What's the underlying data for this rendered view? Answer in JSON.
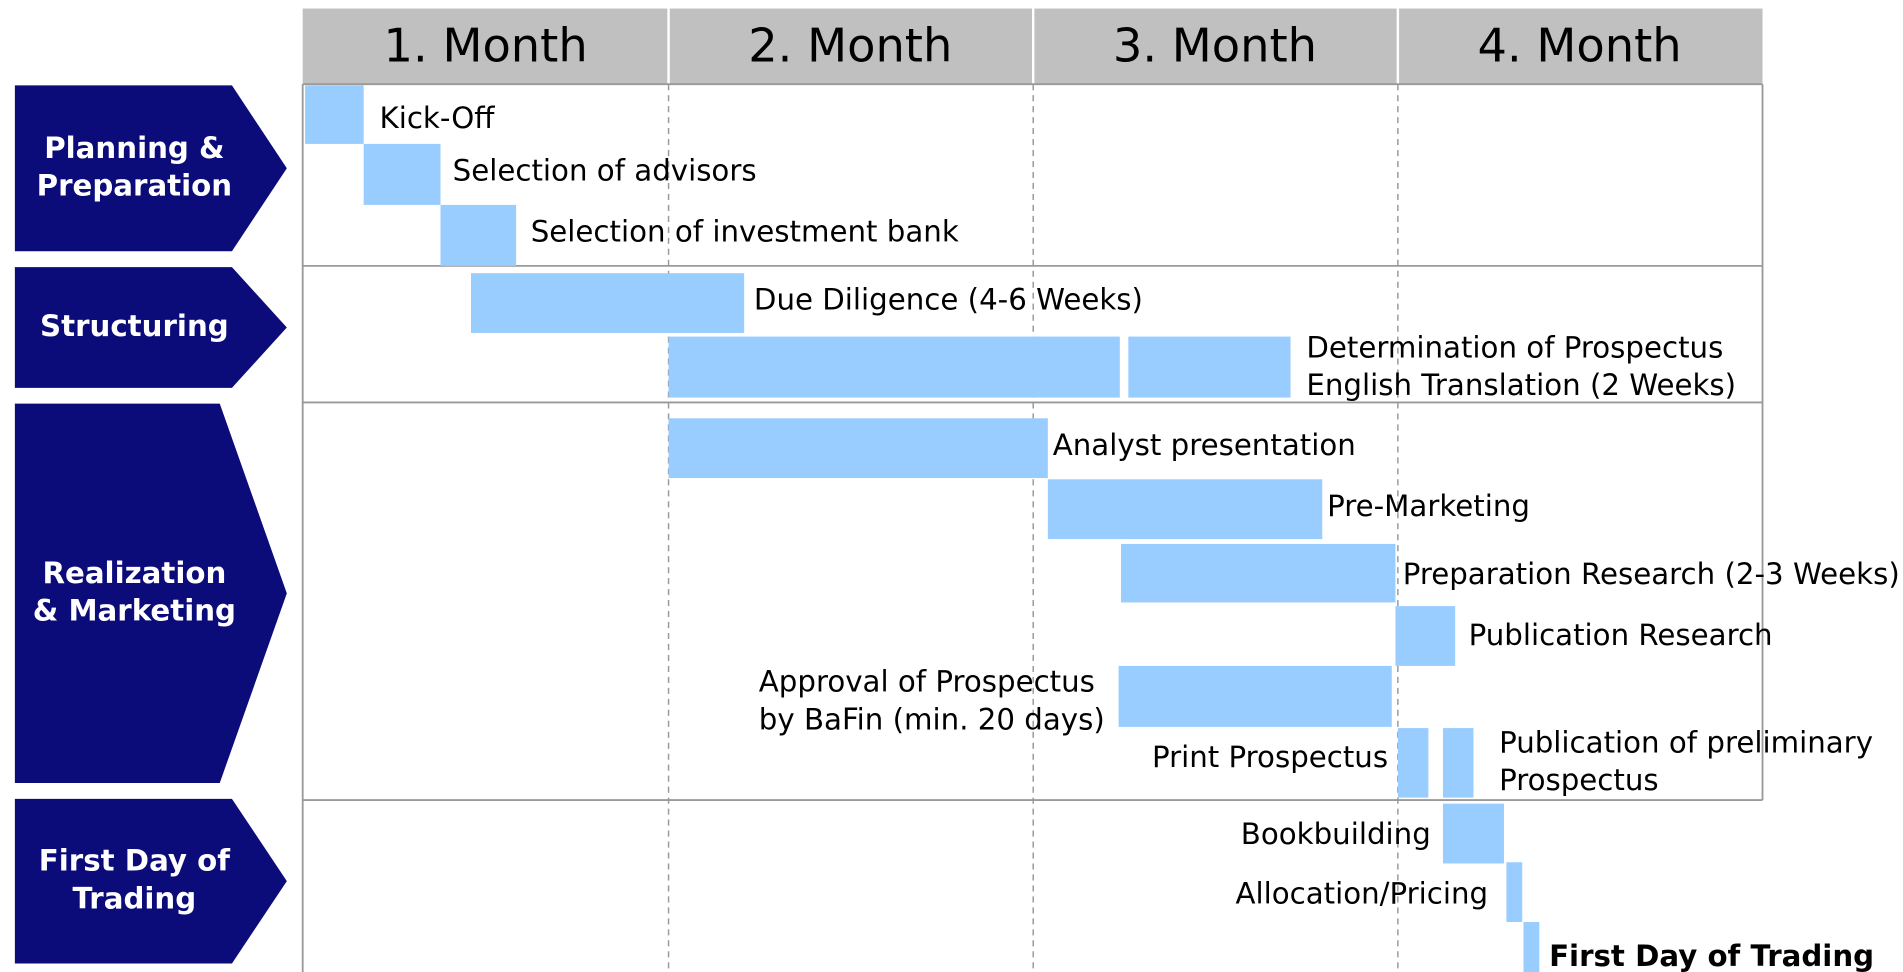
{
  "header": {
    "months": [
      "1. Month",
      "2. Month",
      "3. Month",
      "4. Month"
    ]
  },
  "phases": [
    {
      "label": [
        "Planning &",
        "Preparation"
      ]
    },
    {
      "label": [
        "Structuring"
      ]
    },
    {
      "label": [
        "Realization",
        "& Marketing"
      ]
    },
    {
      "label": [
        "First Day of",
        "Trading"
      ]
    }
  ],
  "tasks": [
    {
      "label": [
        "Kick-Off"
      ]
    },
    {
      "label": [
        "Selection of advisors"
      ]
    },
    {
      "label": [
        "Selection of investment bank"
      ]
    },
    {
      "label": [
        "Due Diligence (4-6 Weeks)"
      ]
    },
    {
      "label": [
        "Determination of Prospectus"
      ]
    },
    {
      "label": [
        "English Translation (2 Weeks)"
      ]
    },
    {
      "label": [
        "Analyst presentation"
      ]
    },
    {
      "label": [
        "Pre-Marketing"
      ]
    },
    {
      "label": [
        "Preparation Research (2-3 Weeks)"
      ]
    },
    {
      "label": [
        "Publication Research"
      ]
    },
    {
      "label": [
        "Approval of Prospectus",
        "by BaFin (min. 20 days)"
      ]
    },
    {
      "label": [
        "Print Prospectus"
      ]
    },
    {
      "label": [
        "Publication of preliminary",
        "Prospectus"
      ]
    },
    {
      "label": [
        "Bookbuilding"
      ]
    },
    {
      "label": [
        "Allocation/Pricing"
      ]
    },
    {
      "label": [
        "First Day of Trading"
      ]
    }
  ]
}
